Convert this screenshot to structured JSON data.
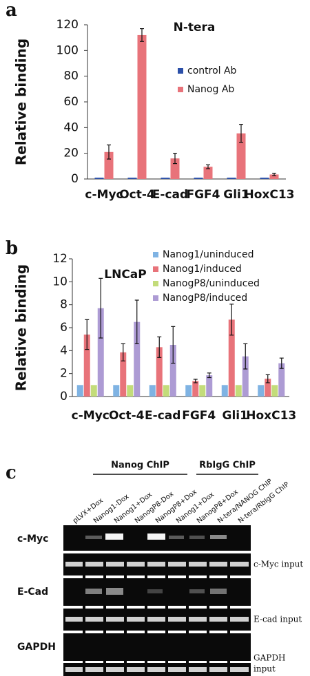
{
  "chart_data": [
    {
      "type": "bar",
      "panel": "a",
      "title": "N-tera",
      "ylabel": "Relative binding",
      "categories": [
        "c-Myc",
        "Oct-4",
        "E-cad",
        "FGF4",
        "Gli1",
        "HoxC13"
      ],
      "series": [
        {
          "name": "control Ab",
          "color": "#2b4fa8",
          "values": [
            1,
            1,
            1,
            1,
            1,
            1
          ]
        },
        {
          "name": "Nanog Ab",
          "color": "#e8737a",
          "values": [
            21,
            112,
            16,
            9.5,
            35.5,
            3.5
          ],
          "errors": [
            5.5,
            5,
            4,
            1.5,
            7,
            1
          ]
        }
      ],
      "ylim": [
        0,
        120
      ],
      "yticks": [
        0,
        20,
        40,
        60,
        80,
        100,
        120
      ]
    },
    {
      "type": "bar",
      "panel": "b",
      "title": "LNCaP",
      "ylabel": "Relative binding",
      "categories": [
        "c-Myc",
        "Oct-4",
        "E-cad",
        "FGF4",
        "Gli1",
        "HoxC13"
      ],
      "series": [
        {
          "name": "Nanog1/uninduced",
          "color": "#7fb3e3",
          "values": [
            1,
            1,
            1,
            1,
            1,
            1
          ]
        },
        {
          "name": "Nanog1/induced",
          "color": "#e8737a",
          "values": [
            5.4,
            3.85,
            4.3,
            1.35,
            6.7,
            1.55
          ],
          "errors": [
            1.3,
            0.75,
            0.9,
            0.15,
            1.35,
            0.35
          ]
        },
        {
          "name": "NanogP8/uninduced",
          "color": "#c3dc7a",
          "values": [
            1,
            1,
            1,
            1,
            1,
            1
          ]
        },
        {
          "name": "NanogP8/induced",
          "color": "#ad9bd4",
          "values": [
            7.7,
            6.5,
            4.5,
            1.85,
            3.5,
            2.9
          ],
          "errors": [
            2.6,
            1.9,
            1.6,
            0.2,
            1.1,
            0.45
          ]
        }
      ],
      "ylim": [
        0,
        12
      ],
      "yticks": [
        0,
        2,
        4,
        6,
        8,
        10,
        12
      ]
    }
  ],
  "gel": {
    "panel": "c",
    "groups": [
      {
        "label": "Nanog ChIP"
      },
      {
        "label": "RbIgG ChIP"
      }
    ],
    "lanes": [
      "pLVX+Dox",
      "Nanog1-Dox",
      "Nanog1+Dox",
      "NanogP8-Dox",
      "NanogP8+Dox",
      "Nanog1+Dox",
      "NanogP8+Dox",
      "N-tera/NANOG ChIP",
      "N-tera/RbIgG ChIP"
    ],
    "rows": [
      {
        "label": "c-Myc",
        "input_label": [
          "c-Myc input"
        ]
      },
      {
        "label": "E-Cad",
        "input_label": [
          "E-cad input"
        ]
      },
      {
        "label": "GAPDH",
        "input_label": [
          "GAPDH",
          "input"
        ]
      }
    ]
  }
}
